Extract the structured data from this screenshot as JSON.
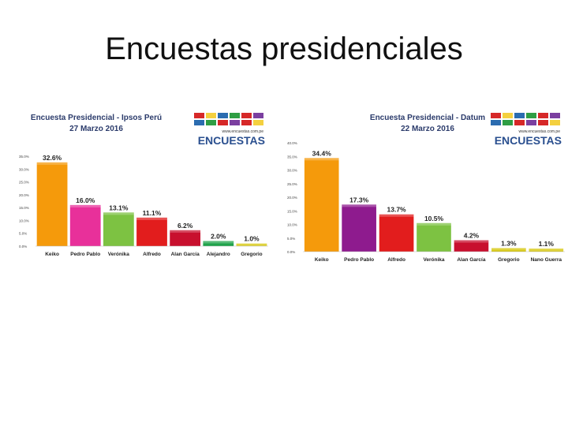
{
  "slide": {
    "title": "Encuestas presidenciales"
  },
  "brand": {
    "name": "ENCUESTAS",
    "url": "www.encuestas.com.pe",
    "stripe_colors": [
      "#d62828",
      "#f4d03f",
      "#2b6cb0",
      "#2f9e44",
      "#d62828",
      "#7b3fa0"
    ]
  },
  "chart_data": [
    {
      "type": "bar",
      "title": "Encuesta Presidencial - Ipsos Perú",
      "date": "27 Marzo 2016",
      "categories": [
        "Keiko",
        "Pedro Pablo",
        "Verónika",
        "Alfredo",
        "Alan García",
        "Alejandro",
        "Gregorio"
      ],
      "values": [
        32.6,
        16.0,
        13.1,
        11.1,
        6.2,
        2.0,
        1.0
      ],
      "value_labels": [
        "32.6%",
        "16.0%",
        "13.1%",
        "11.1%",
        "6.2%",
        "2.0%",
        "1.0%"
      ],
      "colors": [
        "#f59a0b",
        "#e8309a",
        "#7dc242",
        "#e21d1d",
        "#c8102e",
        "#1fa34a",
        "#d4c400"
      ],
      "ylim": [
        0,
        35
      ],
      "yticks": [
        "0.0%",
        "5.0%",
        "10.0%",
        "15.0%",
        "20.0%",
        "25.0%",
        "30.0%",
        "35.0%"
      ],
      "ytick_values": [
        0,
        5,
        10,
        15,
        20,
        25,
        30,
        35
      ]
    },
    {
      "type": "bar",
      "title": "Encuesta Presidencial - Datum",
      "date": "22 Marzo 2016",
      "categories": [
        "Keiko",
        "Pedro Pablo",
        "Alfredo",
        "Verónika",
        "Alan García",
        "Gregorio",
        "Nano Guerra"
      ],
      "values": [
        34.4,
        17.3,
        13.7,
        10.5,
        4.2,
        1.3,
        1.1
      ],
      "value_labels": [
        "34.4%",
        "17.3%",
        "13.7%",
        "10.5%",
        "4.2%",
        "1.3%",
        "1.1%"
      ],
      "colors": [
        "#f59a0b",
        "#8e1b8e",
        "#e21d1d",
        "#7dc242",
        "#c8102e",
        "#d4c400",
        "#d4c400"
      ],
      "ylim": [
        0,
        40
      ],
      "yticks": [
        "0.0%",
        "5.0%",
        "10.0%",
        "15.0%",
        "20.0%",
        "25.0%",
        "30.0%",
        "35.0%",
        "40.0%"
      ],
      "ytick_values": [
        0,
        5,
        10,
        15,
        20,
        25,
        30,
        35,
        40
      ]
    }
  ]
}
